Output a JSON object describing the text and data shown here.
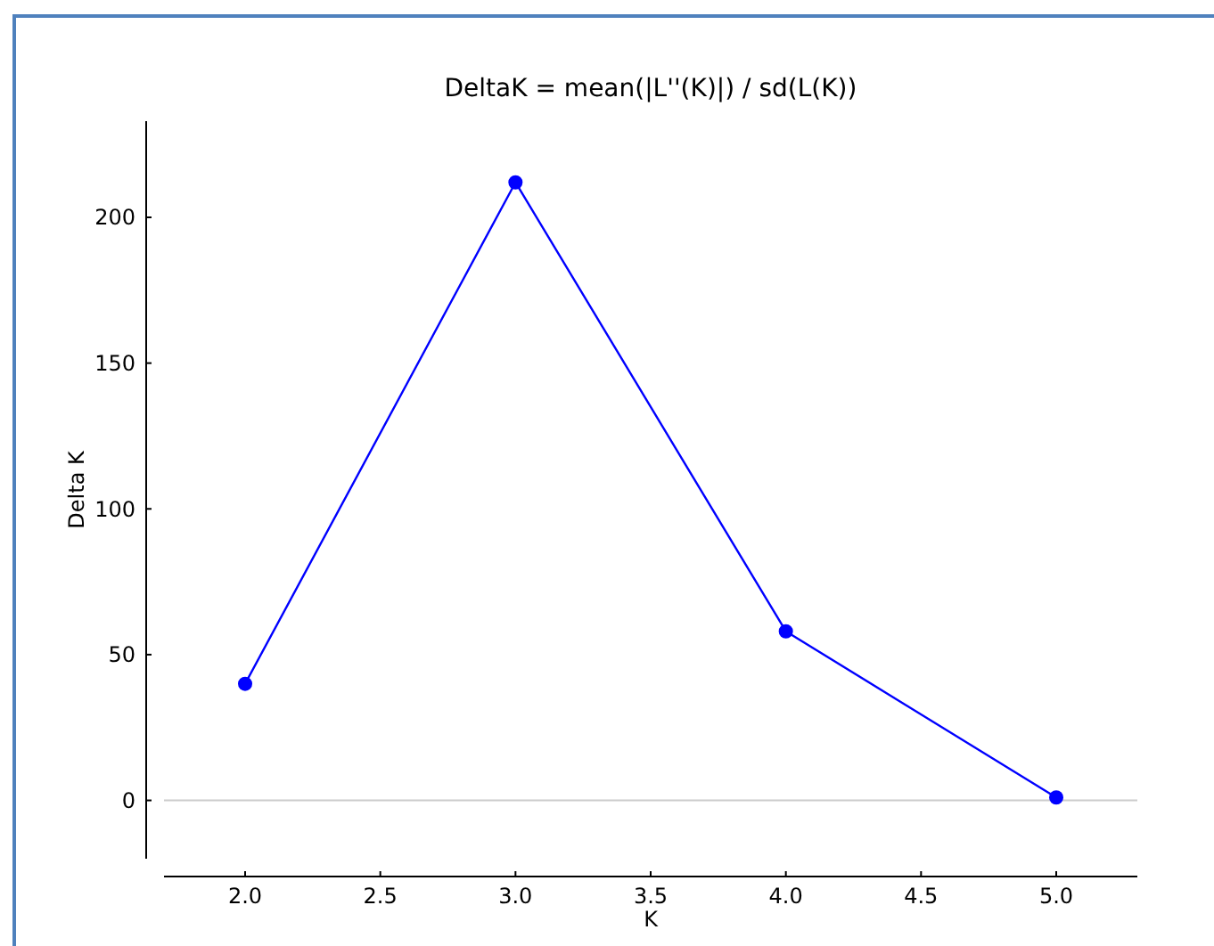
{
  "chart_data": {
    "type": "line",
    "title": "DeltaK = mean(|L''(K)|) / sd(L(K))",
    "xlabel": "K",
    "ylabel": "Delta K",
    "x": [
      2,
      3,
      4,
      5
    ],
    "series": [
      {
        "color": "#0000ff",
        "values": [
          40,
          212,
          58,
          1
        ]
      }
    ],
    "xlim": [
      1.7,
      5.3
    ],
    "xticks": [
      {
        "value": 2,
        "label": "2.0"
      },
      {
        "value": 2.5,
        "label": "2.5"
      },
      {
        "value": 3,
        "label": "3.0"
      },
      {
        "value": 3.5,
        "label": "3.5"
      },
      {
        "value": 4,
        "label": "4.0"
      },
      {
        "value": 4.5,
        "label": "4.5"
      },
      {
        "value": 5,
        "label": "5.0"
      }
    ],
    "ylim": [
      -20,
      233
    ],
    "yticks": [
      0,
      50,
      100,
      150,
      200
    ],
    "ref_lines": [
      {
        "axis": "y",
        "value": 0,
        "color": "#cccccc"
      }
    ],
    "marker": "circle",
    "line_style": "solid",
    "grid": false
  }
}
